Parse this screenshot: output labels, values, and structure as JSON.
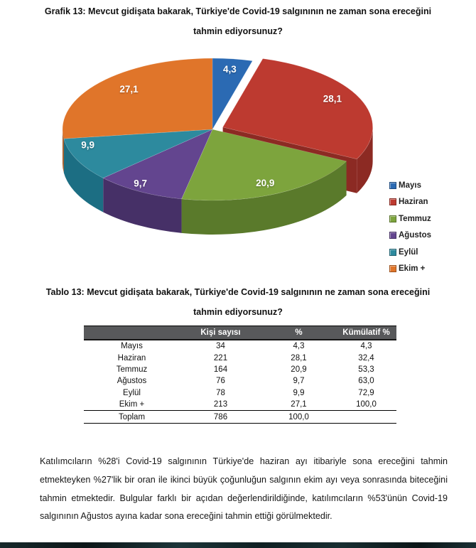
{
  "grafik": {
    "title": "Grafik 13: Mevcut gidişata bakarak, Türkiye'de Covid-19 salgınının ne zaman sona ereceğini tahmin ediyorsunuz?"
  },
  "chart_data": {
    "type": "pie",
    "style": "3d-exploded",
    "title": "Grafik 13: Mevcut gidişata bakarak, Türkiye'de Covid-19 salgınının ne zaman sona ereceğini tahmin ediyorsunuz?",
    "categories": [
      "Mayıs",
      "Haziran",
      "Temmuz",
      "Ağustos",
      "Eylül",
      "Ekim +"
    ],
    "values": [
      4.3,
      28.1,
      20.9,
      9.7,
      9.9,
      27.1
    ],
    "value_labels": [
      "4,3",
      "28,1",
      "20,9",
      "9,7",
      "9,9",
      "27,1"
    ],
    "colors": [
      "#2b6ab3",
      "#bd3a30",
      "#7da43d",
      "#63458f",
      "#2d8a9e",
      "#e0752a"
    ],
    "side_colors": [
      "#1d4a7e",
      "#8c2a23",
      "#5a7a2b",
      "#463067",
      "#1c6e83",
      "#a65720"
    ],
    "exploded_index": 1,
    "start_angle_deg": 0,
    "direction": "clockwise",
    "legend_position": "right"
  },
  "table": {
    "title": "Tablo 13: Mevcut gidişata bakarak, Türkiye'de Covid-19 salgınının ne zaman sona ereceğini tahmin ediyorsunuz?",
    "columns": [
      "",
      "Kişi sayısı",
      "%",
      "Kümülatif %"
    ],
    "rows": [
      [
        "Mayıs",
        "34",
        "4,3",
        "4,3"
      ],
      [
        "Haziran",
        "221",
        "28,1",
        "32,4"
      ],
      [
        "Temmuz",
        "164",
        "20,9",
        "53,3"
      ],
      [
        "Ağustos",
        "76",
        "9,7",
        "63,0"
      ],
      [
        "Eylül",
        "78",
        "9,9",
        "72,9"
      ],
      [
        "Ekim +",
        "213",
        "27,1",
        "100,0"
      ]
    ],
    "total_row": [
      "Toplam",
      "786",
      "100,0",
      ""
    ]
  },
  "commentary": {
    "text": "Katılımcıların %28'i Covid-19 salgınının Türkiye'de haziran ayı itibariyle sona ereceğini tahmin etmekteyken %27'lik bir oran ile ikinci büyük çoğunluğun salgının ekim ayı veya sonrasında biteceğini tahmin etmektedir. Bulgular farklı bir açıdan değerlendirildiğinde, katılımcıların %53'ünün Covid-19 salgınının Ağustos ayına kadar sona ereceğini tahmin ettiği görülmektedir."
  }
}
